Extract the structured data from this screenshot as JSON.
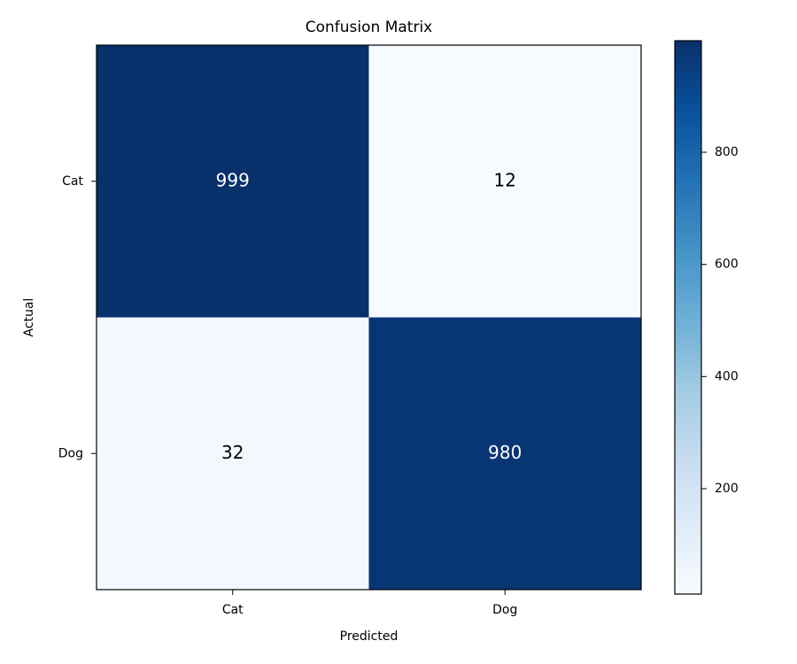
{
  "chart_data": {
    "type": "heatmap",
    "title": "Confusion Matrix",
    "x_label": "Predicted",
    "y_label": "Actual",
    "x_categories": [
      "Cat",
      "Dog"
    ],
    "y_categories": [
      "Cat",
      "Dog"
    ],
    "values": [
      [
        999,
        12
      ],
      [
        32,
        980
      ]
    ],
    "colormap": [
      "#f7fbff",
      "#deebf7",
      "#c6dbef",
      "#9ecae1",
      "#6baed6",
      "#4292c6",
      "#2171b5",
      "#08519c",
      "#08306b"
    ],
    "clim": [
      12,
      999
    ],
    "colorbar_ticks": [
      200,
      400,
      600,
      800
    ]
  }
}
